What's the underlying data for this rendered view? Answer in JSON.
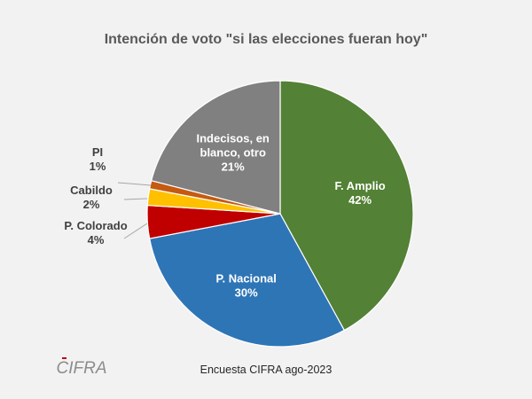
{
  "chart_data": {
    "type": "pie",
    "title": "Intención de voto \"si las elecciones fueran hoy\"",
    "slices": [
      {
        "name": "F. Amplio",
        "lines": [
          "F. Amplio"
        ],
        "value": 42,
        "label": "42%",
        "color": "#538135",
        "text_color": "#ffffff",
        "placement": "inside"
      },
      {
        "name": "P. Nacional",
        "lines": [
          "P. Nacional"
        ],
        "value": 30,
        "label": "30%",
        "color": "#2e75b6",
        "text_color": "#ffffff",
        "placement": "inside"
      },
      {
        "name": "P. Colorado",
        "lines": [
          "P. Colorado"
        ],
        "value": 4,
        "label": "4%",
        "color": "#c00000",
        "text_color": "#404040",
        "placement": "outside"
      },
      {
        "name": "Cabildo",
        "lines": [
          "Cabildo"
        ],
        "value": 2,
        "label": "2%",
        "color": "#ffc000",
        "text_color": "#404040",
        "placement": "outside"
      },
      {
        "name": "PI",
        "lines": [
          "PI"
        ],
        "value": 1,
        "label": "1%",
        "color": "#c55a11",
        "text_color": "#404040",
        "placement": "outside"
      },
      {
        "name": "Indecisos, en blanco, otro",
        "lines": [
          "Indecisos, en",
          "blanco, otro"
        ],
        "value": 21,
        "label": "21%",
        "color": "#808080",
        "text_color": "#ffffff",
        "placement": "inside"
      }
    ],
    "start_angle_deg": 0,
    "direction": "clockwise",
    "legend": "none"
  },
  "footer": {
    "source": "Encuesta CIFRA ago-2023",
    "logo_text": "CIFRA"
  }
}
